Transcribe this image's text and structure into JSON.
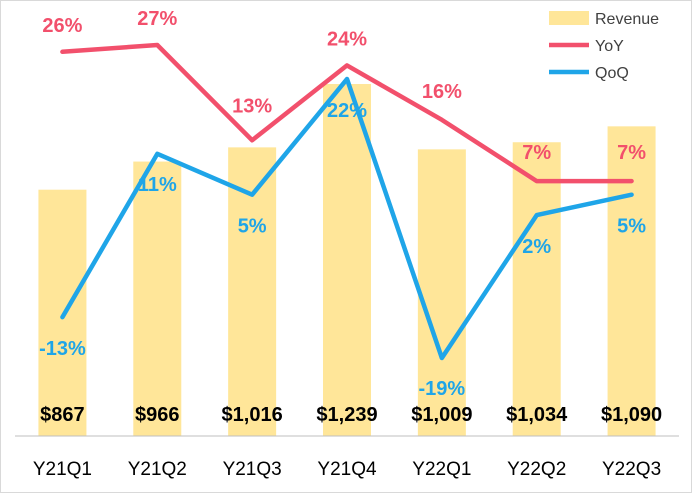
{
  "chart_data": {
    "type": "bar",
    "categories": [
      "Y21Q1",
      "Y21Q2",
      "Y21Q3",
      "Y21Q4",
      "Y22Q1",
      "Y22Q2",
      "Y22Q3"
    ],
    "series": [
      {
        "name": "Revenue",
        "kind": "bar",
        "values": [
          867,
          966,
          1016,
          1239,
          1009,
          1034,
          1090
        ],
        "labels": [
          "$867",
          "$966",
          "$1,016",
          "$1,239",
          "$1,009",
          "$1,034",
          "$1,090"
        ],
        "color": "#FFE699"
      },
      {
        "name": "YoY",
        "kind": "line",
        "values": [
          26,
          27,
          13,
          24,
          16,
          7,
          7
        ],
        "labels": [
          "26%",
          "27%",
          "13%",
          "24%",
          "16%",
          "7%",
          "7%"
        ],
        "color": "#F2506C"
      },
      {
        "name": "QoQ",
        "kind": "line",
        "values": [
          -13,
          11,
          5,
          22,
          -19,
          2,
          5
        ],
        "labels": [
          "-13%",
          "11%",
          "5%",
          "22%",
          "-19%",
          "2%",
          "5%"
        ],
        "color": "#1FA5E8"
      }
    ],
    "legend_position": "top-right",
    "grid": false,
    "bar_ylim": [
      0,
      1320
    ],
    "line_ylim": [
      -25,
      35
    ]
  }
}
